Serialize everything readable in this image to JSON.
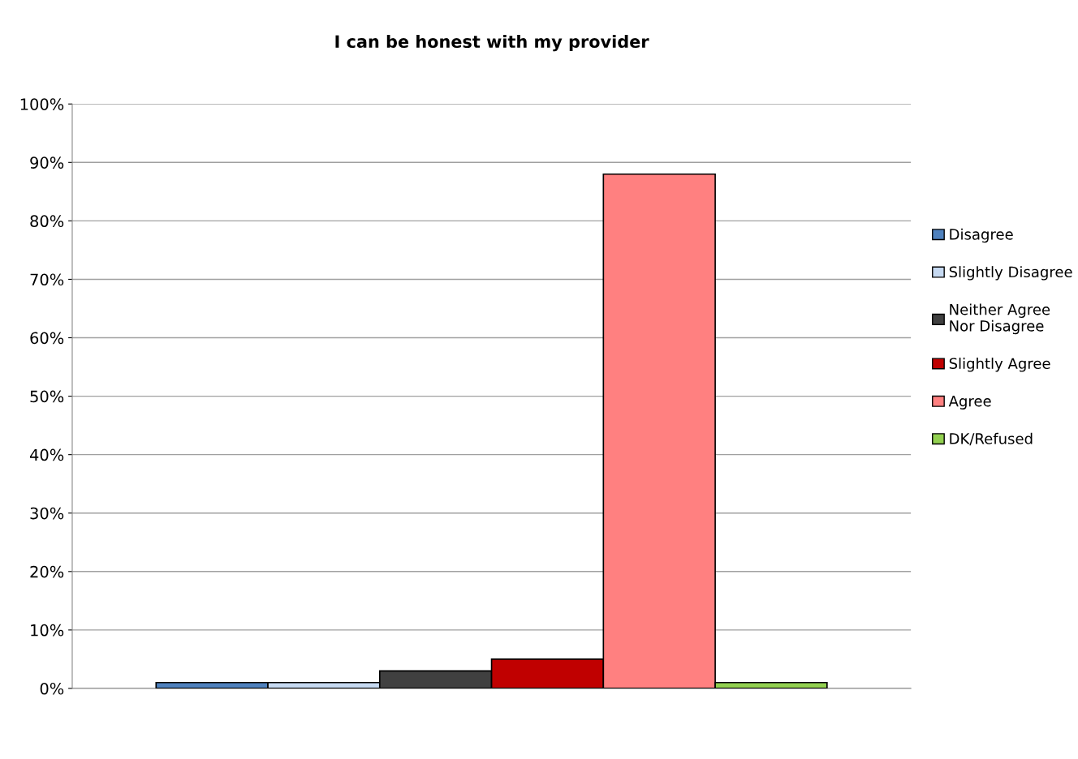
{
  "chart_data": {
    "type": "bar",
    "title": "I can be honest with my provider",
    "categories": [
      null
    ],
    "series": [
      {
        "name": "Disagree",
        "color": "#4f81bd",
        "values": [
          1
        ]
      },
      {
        "name": "Slightly Disagree",
        "color": "#c6d9f1",
        "values": [
          1
        ]
      },
      {
        "name": "Neither Agree Nor Disagree",
        "color": "#404040",
        "values": [
          3
        ]
      },
      {
        "name": "Slightly Agree",
        "color": "#c00000",
        "values": [
          5
        ]
      },
      {
        "name": "Agree",
        "color": "#ff8080",
        "values": [
          88
        ]
      },
      {
        "name": "DK/Refused",
        "color": "#92d050",
        "values": [
          1
        ]
      }
    ],
    "ylim": [
      0,
      100
    ],
    "yticks": [
      {
        "value": 0,
        "label": "0%"
      },
      {
        "value": 10,
        "label": "10%"
      },
      {
        "value": 20,
        "label": "20%"
      },
      {
        "value": 30,
        "label": "30%"
      },
      {
        "value": 40,
        "label": "40%"
      },
      {
        "value": 50,
        "label": "50%"
      },
      {
        "value": 60,
        "label": "60%"
      },
      {
        "value": 70,
        "label": "70%"
      },
      {
        "value": 80,
        "label": "80%"
      },
      {
        "value": 90,
        "label": "90%"
      },
      {
        "value": 100,
        "label": "100%"
      }
    ],
    "grid": "y",
    "legend": "right"
  }
}
